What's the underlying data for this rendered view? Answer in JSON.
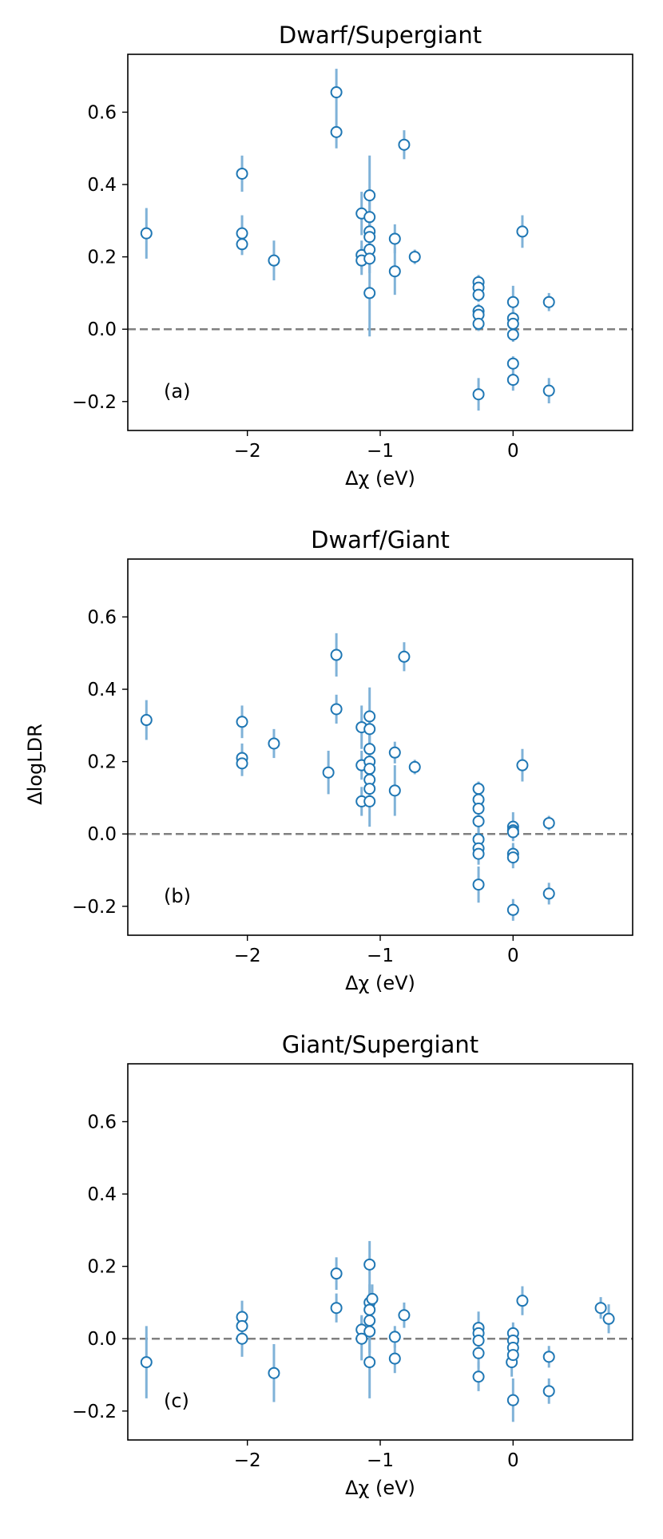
{
  "figure": {
    "ylabel": "ΔlogLDR",
    "xlabel": "Δχ (eV)"
  },
  "chart_data": [
    {
      "type": "scatter",
      "title": "Dwarf/Supergiant",
      "panel_label": "(a)",
      "xlabel": "Δχ (eV)",
      "ylabel": "",
      "xlim": [
        -2.9,
        0.9
      ],
      "ylim": [
        -0.28,
        0.76
      ],
      "xticks": [
        -2,
        -1,
        0
      ],
      "xtick_labels": [
        "−2",
        "−1",
        "0"
      ],
      "yticks": [
        -0.2,
        0.0,
        0.2,
        0.4,
        0.6
      ],
      "ytick_labels": [
        "−0.2",
        "0.0",
        "0.2",
        "0.4",
        "0.6"
      ],
      "reference_line": 0.0,
      "grid": false,
      "points": [
        {
          "x": -2.76,
          "y": 0.265,
          "err": 0.07
        },
        {
          "x": -2.04,
          "y": 0.43,
          "err": 0.05
        },
        {
          "x": -2.04,
          "y": 0.265,
          "err": 0.05
        },
        {
          "x": -2.04,
          "y": 0.235,
          "err": 0.03
        },
        {
          "x": -1.8,
          "y": 0.19,
          "err": 0.055
        },
        {
          "x": -1.33,
          "y": 0.655,
          "err": 0.065
        },
        {
          "x": -1.33,
          "y": 0.545,
          "err": 0.045
        },
        {
          "x": -1.14,
          "y": 0.32,
          "err": 0.06
        },
        {
          "x": -1.14,
          "y": 0.205,
          "err": 0.04
        },
        {
          "x": -1.14,
          "y": 0.19,
          "err": 0.04
        },
        {
          "x": -1.08,
          "y": 0.37,
          "err": 0.11
        },
        {
          "x": -1.08,
          "y": 0.31,
          "err": 0.05
        },
        {
          "x": -1.08,
          "y": 0.27,
          "err": 0.05
        },
        {
          "x": -1.08,
          "y": 0.255,
          "err": 0.05
        },
        {
          "x": -1.08,
          "y": 0.22,
          "err": 0.04
        },
        {
          "x": -1.08,
          "y": 0.195,
          "err": 0.04
        },
        {
          "x": -1.08,
          "y": 0.1,
          "err": 0.12
        },
        {
          "x": -0.89,
          "y": 0.25,
          "err": 0.04
        },
        {
          "x": -0.89,
          "y": 0.16,
          "err": 0.065
        },
        {
          "x": -0.82,
          "y": 0.51,
          "err": 0.04
        },
        {
          "x": -0.74,
          "y": 0.2,
          "err": 0.02
        },
        {
          "x": -0.26,
          "y": 0.13,
          "err": 0.02
        },
        {
          "x": -0.26,
          "y": 0.115,
          "err": 0.02
        },
        {
          "x": -0.26,
          "y": 0.095,
          "err": 0.02
        },
        {
          "x": -0.26,
          "y": 0.05,
          "err": 0.02
        },
        {
          "x": -0.26,
          "y": 0.04,
          "err": 0.02
        },
        {
          "x": -0.26,
          "y": 0.015,
          "err": 0.02
        },
        {
          "x": -0.26,
          "y": -0.18,
          "err": 0.045
        },
        {
          "x": 0.0,
          "y": 0.075,
          "err": 0.045
        },
        {
          "x": 0.0,
          "y": 0.03,
          "err": 0.02
        },
        {
          "x": 0.0,
          "y": 0.015,
          "err": 0.02
        },
        {
          "x": 0.0,
          "y": -0.015,
          "err": 0.02
        },
        {
          "x": 0.0,
          "y": -0.095,
          "err": 0.02
        },
        {
          "x": 0.0,
          "y": -0.14,
          "err": 0.03
        },
        {
          "x": 0.07,
          "y": 0.27,
          "err": 0.045
        },
        {
          "x": 0.27,
          "y": 0.075,
          "err": 0.025
        },
        {
          "x": 0.27,
          "y": -0.17,
          "err": 0.035
        }
      ]
    },
    {
      "type": "scatter",
      "title": "Dwarf/Giant",
      "panel_label": "(b)",
      "xlabel": "Δχ (eV)",
      "ylabel": "ΔlogLDR",
      "xlim": [
        -2.9,
        0.9
      ],
      "ylim": [
        -0.28,
        0.76
      ],
      "xticks": [
        -2,
        -1,
        0
      ],
      "xtick_labels": [
        "−2",
        "−1",
        "0"
      ],
      "yticks": [
        -0.2,
        0.0,
        0.2,
        0.4,
        0.6
      ],
      "ytick_labels": [
        "−0.2",
        "0.0",
        "0.2",
        "0.4",
        "0.6"
      ],
      "reference_line": 0.0,
      "grid": false,
      "points": [
        {
          "x": -2.76,
          "y": 0.315,
          "err": 0.055
        },
        {
          "x": -2.04,
          "y": 0.31,
          "err": 0.045
        },
        {
          "x": -2.04,
          "y": 0.21,
          "err": 0.04
        },
        {
          "x": -2.04,
          "y": 0.195,
          "err": 0.035
        },
        {
          "x": -1.8,
          "y": 0.25,
          "err": 0.04
        },
        {
          "x": -1.39,
          "y": 0.17,
          "err": 0.06
        },
        {
          "x": -1.33,
          "y": 0.495,
          "err": 0.06
        },
        {
          "x": -1.33,
          "y": 0.345,
          "err": 0.04
        },
        {
          "x": -1.14,
          "y": 0.295,
          "err": 0.06
        },
        {
          "x": -1.14,
          "y": 0.19,
          "err": 0.04
        },
        {
          "x": -1.14,
          "y": 0.09,
          "err": 0.04
        },
        {
          "x": -1.08,
          "y": 0.325,
          "err": 0.08
        },
        {
          "x": -1.08,
          "y": 0.29,
          "err": 0.05
        },
        {
          "x": -1.08,
          "y": 0.235,
          "err": 0.05
        },
        {
          "x": -1.08,
          "y": 0.2,
          "err": 0.05
        },
        {
          "x": -1.08,
          "y": 0.18,
          "err": 0.04
        },
        {
          "x": -1.08,
          "y": 0.15,
          "err": 0.04
        },
        {
          "x": -1.08,
          "y": 0.125,
          "err": 0.05
        },
        {
          "x": -1.08,
          "y": 0.09,
          "err": 0.07
        },
        {
          "x": -0.89,
          "y": 0.225,
          "err": 0.03
        },
        {
          "x": -0.89,
          "y": 0.12,
          "err": 0.07
        },
        {
          "x": -0.82,
          "y": 0.49,
          "err": 0.04
        },
        {
          "x": -0.74,
          "y": 0.185,
          "err": 0.02
        },
        {
          "x": -0.26,
          "y": 0.125,
          "err": 0.02
        },
        {
          "x": -0.26,
          "y": 0.095,
          "err": 0.02
        },
        {
          "x": -0.26,
          "y": 0.07,
          "err": 0.02
        },
        {
          "x": -0.26,
          "y": 0.035,
          "err": 0.03
        },
        {
          "x": -0.26,
          "y": -0.015,
          "err": 0.03
        },
        {
          "x": -0.26,
          "y": -0.04,
          "err": 0.03
        },
        {
          "x": -0.26,
          "y": -0.055,
          "err": 0.03
        },
        {
          "x": -0.26,
          "y": -0.14,
          "err": 0.05
        },
        {
          "x": 0.0,
          "y": 0.02,
          "err": 0.04
        },
        {
          "x": 0.0,
          "y": 0.01,
          "err": 0.02
        },
        {
          "x": 0.0,
          "y": 0.005,
          "err": 0.02
        },
        {
          "x": 0.0,
          "y": -0.055,
          "err": 0.03
        },
        {
          "x": 0.0,
          "y": -0.065,
          "err": 0.03
        },
        {
          "x": 0.0,
          "y": -0.21,
          "err": 0.03
        },
        {
          "x": 0.07,
          "y": 0.19,
          "err": 0.045
        },
        {
          "x": 0.27,
          "y": 0.03,
          "err": 0.02
        },
        {
          "x": 0.27,
          "y": -0.165,
          "err": 0.03
        }
      ]
    },
    {
      "type": "scatter",
      "title": "Giant/Supergiant",
      "panel_label": "(c)",
      "xlabel": "Δχ (eV)",
      "ylabel": "",
      "xlim": [
        -2.9,
        0.9
      ],
      "ylim": [
        -0.28,
        0.76
      ],
      "xticks": [
        -2,
        -1,
        0
      ],
      "xtick_labels": [
        "−2",
        "−1",
        "0"
      ],
      "yticks": [
        -0.2,
        0.0,
        0.2,
        0.4,
        0.6
      ],
      "ytick_labels": [
        "−0.2",
        "0.0",
        "0.2",
        "0.4",
        "0.6"
      ],
      "reference_line": 0.0,
      "grid": false,
      "points": [
        {
          "x": -2.76,
          "y": -0.065,
          "err": 0.1
        },
        {
          "x": -2.04,
          "y": 0.06,
          "err": 0.045
        },
        {
          "x": -2.04,
          "y": 0.035,
          "err": 0.04
        },
        {
          "x": -2.04,
          "y": 0.0,
          "err": 0.05
        },
        {
          "x": -1.8,
          "y": -0.095,
          "err": 0.08
        },
        {
          "x": -1.33,
          "y": 0.18,
          "err": 0.045
        },
        {
          "x": -1.33,
          "y": 0.085,
          "err": 0.04
        },
        {
          "x": -1.14,
          "y": 0.025,
          "err": 0.04
        },
        {
          "x": -1.14,
          "y": 0.0,
          "err": 0.06
        },
        {
          "x": -1.08,
          "y": 0.205,
          "err": 0.065
        },
        {
          "x": -1.08,
          "y": 0.1,
          "err": 0.05
        },
        {
          "x": -1.08,
          "y": 0.08,
          "err": 0.06
        },
        {
          "x": -1.08,
          "y": 0.05,
          "err": 0.05
        },
        {
          "x": -1.08,
          "y": 0.02,
          "err": 0.06
        },
        {
          "x": -1.08,
          "y": -0.065,
          "err": 0.1
        },
        {
          "x": -1.06,
          "y": 0.11,
          "err": 0.04
        },
        {
          "x": -0.89,
          "y": 0.005,
          "err": 0.03
        },
        {
          "x": -0.89,
          "y": -0.055,
          "err": 0.04
        },
        {
          "x": -0.82,
          "y": 0.065,
          "err": 0.035
        },
        {
          "x": -0.26,
          "y": 0.03,
          "err": 0.045
        },
        {
          "x": -0.26,
          "y": 0.015,
          "err": 0.03
        },
        {
          "x": -0.26,
          "y": -0.005,
          "err": 0.03
        },
        {
          "x": -0.26,
          "y": -0.04,
          "err": 0.04
        },
        {
          "x": -0.26,
          "y": -0.105,
          "err": 0.04
        },
        {
          "x": -0.01,
          "y": -0.065,
          "err": 0.04
        },
        {
          "x": 0.0,
          "y": 0.015,
          "err": 0.03
        },
        {
          "x": 0.0,
          "y": -0.005,
          "err": 0.03
        },
        {
          "x": 0.0,
          "y": -0.025,
          "err": 0.03
        },
        {
          "x": 0.0,
          "y": -0.045,
          "err": 0.03
        },
        {
          "x": 0.0,
          "y": -0.17,
          "err": 0.06
        },
        {
          "x": 0.07,
          "y": 0.105,
          "err": 0.04
        },
        {
          "x": 0.27,
          "y": -0.05,
          "err": 0.03
        },
        {
          "x": 0.27,
          "y": -0.145,
          "err": 0.035
        },
        {
          "x": 0.66,
          "y": 0.085,
          "err": 0.03
        },
        {
          "x": 0.72,
          "y": 0.055,
          "err": 0.04
        }
      ]
    }
  ],
  "style": {
    "marker_edge": "#1f77b4",
    "marker_face": "#ffffff",
    "errorbar_color": "#7fb2d8",
    "reference_line_color": "#808080",
    "axis_color": "#000000"
  }
}
